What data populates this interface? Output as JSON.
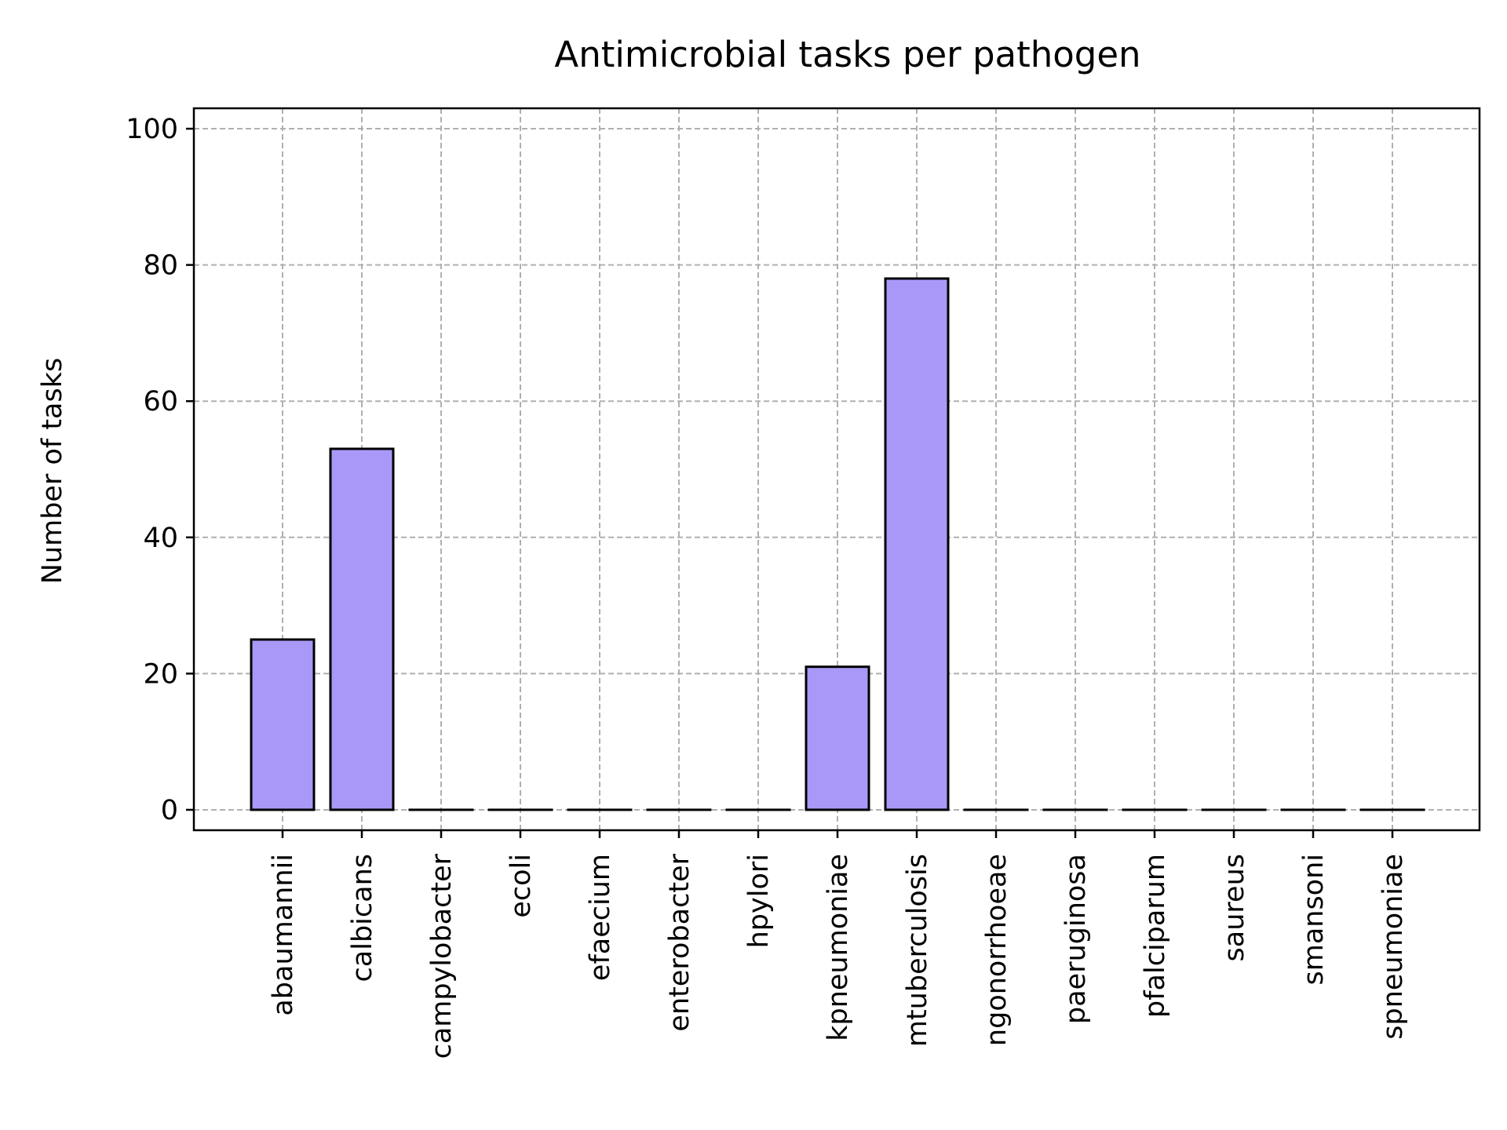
{
  "chart_data": {
    "type": "bar",
    "title": "Antimicrobial tasks per pathogen",
    "xlabel": "",
    "ylabel": "Number of tasks",
    "categories": [
      "abaumannii",
      "calbicans",
      "campylobacter",
      "ecoli",
      "efaecium",
      "enterobacter",
      "hpylori",
      "kpneumoniae",
      "mtuberculosis",
      "ngonorrhoeae",
      "paeruginosa",
      "pfalciparum",
      "saureus",
      "smansoni",
      "spneumoniae"
    ],
    "values": [
      25,
      53,
      0,
      0,
      0,
      0,
      0,
      21,
      78,
      0,
      0,
      0,
      0,
      0,
      0
    ],
    "ylim": [
      -3,
      103
    ],
    "yticks": [
      0,
      20,
      40,
      60,
      80,
      100
    ],
    "grid": true,
    "colors": {
      "bar": "#aa98f8",
      "edge": "#000000",
      "grid": "#b0b0b0"
    }
  }
}
